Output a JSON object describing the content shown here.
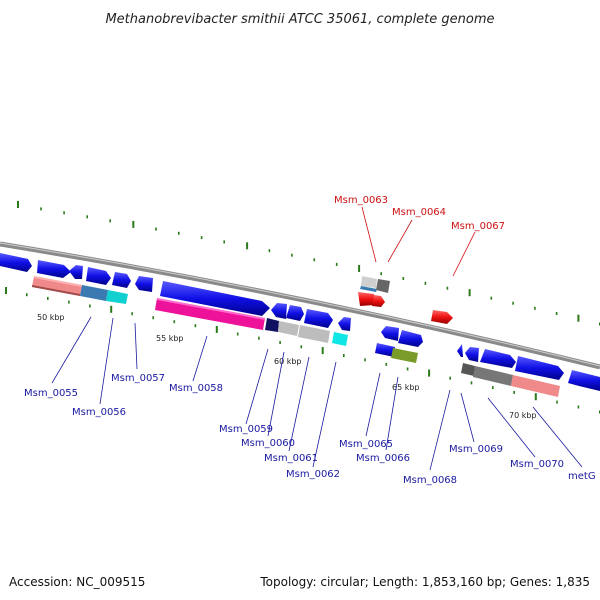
{
  "title": "Methanobrevibacter smithii ATCC 35061, complete genome",
  "footer": {
    "accession": "Accession: NC_009515",
    "topology": "Topology: circular; Length: 1,853,160 bp; Genes: 1,835"
  },
  "scale_labels": [
    "50 kbp",
    "55 kbp",
    "60 kbp",
    "65 kbp",
    "70 kbp"
  ],
  "gene_labels": [
    {
      "text": "Msm_0055",
      "color": "#1a1aa0"
    },
    {
      "text": "Msm_0056",
      "color": "#1a1aa0"
    },
    {
      "text": "Msm_0057",
      "color": "#1a1aa0"
    },
    {
      "text": "Msm_0058",
      "color": "#1a1aa0"
    },
    {
      "text": "Msm_0059",
      "color": "#1a1aa0"
    },
    {
      "text": "Msm_0060",
      "color": "#1a1aa0"
    },
    {
      "text": "Msm_0061",
      "color": "#1a1aa0"
    },
    {
      "text": "Msm_0062",
      "color": "#1a1aa0"
    },
    {
      "text": "Msm_0063",
      "color": "#cc1111"
    },
    {
      "text": "Msm_0064",
      "color": "#cc1111"
    },
    {
      "text": "Msm_0067",
      "color": "#cc1111"
    },
    {
      "text": "Msm_0065",
      "color": "#1a1aa0"
    },
    {
      "text": "Msm_0066",
      "color": "#1a1aa0"
    },
    {
      "text": "Msm_0068",
      "color": "#1a1aa0"
    },
    {
      "text": "Msm_0069",
      "color": "#1a1aa0"
    },
    {
      "text": "Msm_0070",
      "color": "#1a1aa0"
    },
    {
      "text": "metG",
      "color": "#1a1aa0"
    }
  ],
  "colors": {
    "backbone": "#7a7a7a",
    "forward_gene": "#1010e6",
    "reverse_gene": "#ee1111",
    "tick": "#2a7a1a",
    "cog_pink": "#f08a8a",
    "cog_teal": "#10d0d0",
    "cog_steel": "#3a7ab0",
    "cog_magenta": "#ee1199",
    "cog_grey": "#bdbdbd",
    "cog_darkgrey": "#666666",
    "cog_olive": "#7a9a2a",
    "cog_navy": "#101060"
  }
}
